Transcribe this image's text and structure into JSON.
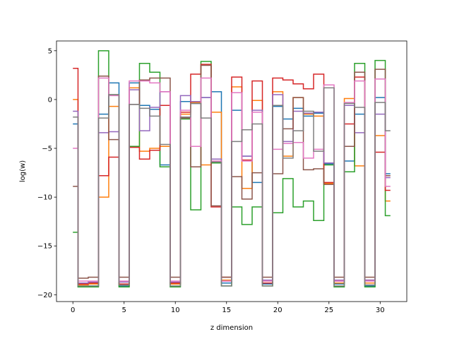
{
  "chart_data": {
    "type": "line",
    "drawstyle": "steps-mid",
    "title": "",
    "xlabel": "z dimension",
    "ylabel": "log(w)",
    "xlim": [
      -1.6,
      32.6
    ],
    "ylim": [
      -20.7,
      6.0
    ],
    "xticks": [
      0,
      5,
      10,
      15,
      20,
      25,
      30
    ],
    "yticks": [
      5,
      0,
      -5,
      -10,
      -15,
      -20
    ],
    "x": [
      0,
      1,
      2,
      3,
      4,
      5,
      6,
      7,
      8,
      9,
      10,
      11,
      12,
      13,
      14,
      15,
      16,
      17,
      18,
      19,
      20,
      21,
      22,
      23,
      24,
      25,
      26,
      27,
      28,
      29,
      30,
      31
    ],
    "series": [
      {
        "color": "#1f77b4",
        "values": [
          -2.5,
          -19.2,
          -19.1,
          -1.5,
          1.7,
          -19.1,
          1.7,
          -0.6,
          -1.0,
          -6.7,
          -18.9,
          -0.2,
          -0.4,
          0.2,
          0.8,
          -18.8,
          -1.1,
          -5.8,
          -8.5,
          -18.9,
          -0.7,
          -2.0,
          -0.9,
          -1.7,
          -1.4,
          -6.6,
          -18.9,
          -6.3,
          -1.5,
          -19.1,
          0.2,
          -7.6
        ]
      },
      {
        "color": "#ff7f0e",
        "values": [
          0.0,
          -19.0,
          -18.9,
          -10.0,
          -0.7,
          -19.0,
          1.2,
          -5.3,
          -5.0,
          -4.8,
          -18.9,
          -1.5,
          -0.3,
          -6.7,
          -1.3,
          -18.5,
          1.3,
          -9.1,
          -0.1,
          -18.6,
          0.8,
          -5.8,
          0.2,
          -1.5,
          -1.7,
          -8.6,
          -18.8,
          0.1,
          -6.8,
          -18.8,
          -3.7,
          -10.4
        ]
      },
      {
        "color": "#2ca02c",
        "values": [
          -13.6,
          -19.2,
          -19.2,
          5.0,
          0.5,
          -19.2,
          -4.8,
          3.7,
          2.8,
          -6.9,
          -19.2,
          -2.0,
          -11.3,
          3.9,
          -6.5,
          -19.1,
          -11.0,
          -12.8,
          -11.0,
          -19.1,
          -11.6,
          -8.1,
          -11.0,
          -10.4,
          -12.4,
          -6.7,
          -19.2,
          -7.4,
          3.7,
          -19.2,
          4.0,
          -11.9
        ]
      },
      {
        "color": "#d62728",
        "values": [
          3.2,
          -18.9,
          -18.8,
          -7.8,
          -5.9,
          -18.9,
          -4.9,
          -6.1,
          -5.2,
          -0.6,
          -18.8,
          -1.3,
          2.6,
          3.6,
          -11.0,
          -18.2,
          2.3,
          -6.2,
          1.9,
          -18.8,
          2.2,
          2.0,
          1.6,
          1.1,
          2.6,
          -8.5,
          -18.6,
          -2.5,
          2.3,
          -18.5,
          -5.4,
          -9.3
        ]
      },
      {
        "color": "#9467bd",
        "values": [
          -1.2,
          -18.8,
          -18.7,
          -3.4,
          -3.3,
          -18.7,
          1.0,
          -3.2,
          -0.8,
          0.8,
          -18.7,
          0.4,
          -0.2,
          0.2,
          -6.1,
          -18.6,
          0.7,
          -5.8,
          -1.1,
          -18.5,
          0.5,
          -4.3,
          -1.2,
          -1.4,
          -1.3,
          -6.5,
          -18.5,
          -0.6,
          -3.4,
          -18.5,
          -1.5,
          -8.0
        ]
      },
      {
        "color": "#8c564b",
        "values": [
          -8.9,
          -18.3,
          -18.2,
          2.4,
          -4.1,
          -18.2,
          -0.5,
          2.0,
          2.2,
          2.2,
          -18.2,
          -1.9,
          -6.9,
          3.5,
          -10.9,
          -18.2,
          -7.9,
          -10.2,
          -7.5,
          -18.2,
          -7.6,
          -3.0,
          0.2,
          -7.2,
          -7.1,
          -8.7,
          -18.2,
          -4.8,
          2.8,
          -18.2,
          3.1,
          -7.8
        ]
      },
      {
        "color": "#e377c2",
        "values": [
          -5.0,
          -18.6,
          -18.6,
          2.2,
          0.4,
          -18.6,
          1.9,
          1.9,
          1.7,
          0.8,
          -18.6,
          -1.1,
          -4.8,
          2.2,
          -6.3,
          -18.6,
          0.7,
          -6.3,
          -1.3,
          -18.6,
          -5.1,
          -4.5,
          -4.4,
          -6.0,
          -5.1,
          1.5,
          -18.6,
          -0.3,
          1.9,
          -18.6,
          2.1,
          -8.9
        ]
      },
      {
        "color": "#7f7f7f",
        "values": [
          -1.8,
          -19.1,
          -19.1,
          -1.9,
          0.5,
          -19.0,
          -0.5,
          -0.9,
          -1.7,
          -4.6,
          -19.1,
          -1.8,
          -0.4,
          -1.9,
          -6.4,
          -19.1,
          -4.3,
          -3.1,
          -2.5,
          -19.1,
          -0.6,
          -6.0,
          -3.2,
          -1.2,
          -5.3,
          1.2,
          -19.1,
          -0.4,
          -0.8,
          -19.0,
          -0.3,
          -3.2
        ]
      }
    ]
  }
}
